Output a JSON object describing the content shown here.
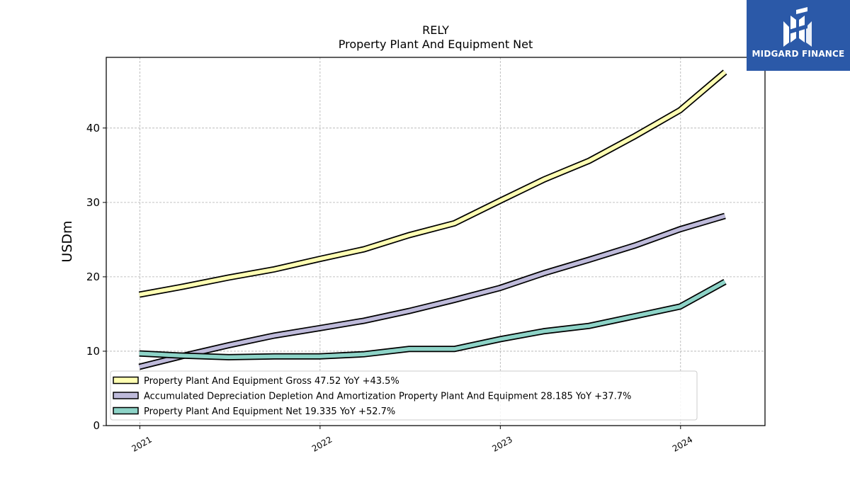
{
  "chart_data": {
    "type": "line",
    "title": "RELY",
    "subtitle": "Property Plant And Equipment Net",
    "ylabel": "USDm",
    "xlabel": "",
    "ylim": [
      0,
      49.5
    ],
    "xlim": [
      "2020-10-25",
      "2024-06-20"
    ],
    "yticks": [
      0,
      10,
      20,
      30,
      40
    ],
    "xticks": [
      "2021",
      "2022",
      "2023",
      "2024"
    ],
    "grid": true,
    "legend_position": "lower-left",
    "x": [
      "2020-12-31",
      "2021-03-31",
      "2021-06-30",
      "2021-09-30",
      "2021-12-31",
      "2022-03-31",
      "2022-06-30",
      "2022-09-30",
      "2022-12-31",
      "2023-03-31",
      "2023-06-30",
      "2023-09-30",
      "2023-12-31",
      "2024-03-31"
    ],
    "series": [
      {
        "name": "Property Plant And Equipment Gross",
        "legend_label": "Property Plant And Equipment Gross  47.52 YoY +43.5%",
        "color": "#ffffb3",
        "values": [
          17.6,
          18.7,
          19.9,
          21.0,
          22.4,
          23.7,
          25.6,
          27.2,
          30.2,
          33.1,
          35.6,
          38.9,
          42.4,
          47.52
        ]
      },
      {
        "name": "Accumulated Depreciation Depletion And Amortization Property Plant And Equipment",
        "legend_label": "Accumulated Depreciation Depletion And Amortization Property Plant And Equipment  28.185 YoY +37.7%",
        "color": "#bebada",
        "values": [
          7.9,
          9.4,
          10.8,
          12.1,
          13.1,
          14.1,
          15.4,
          16.9,
          18.5,
          20.5,
          22.3,
          24.2,
          26.4,
          28.185
        ]
      },
      {
        "name": "Property Plant And Equipment Net",
        "legend_label": "Property Plant And Equipment Net  19.335 YoY +52.7%",
        "color": "#8dd3c7",
        "values": [
          9.7,
          9.4,
          9.2,
          9.3,
          9.3,
          9.6,
          10.3,
          10.3,
          11.6,
          12.7,
          13.4,
          14.7,
          16.0,
          19.335
        ]
      }
    ]
  },
  "logo": {
    "text": "MIDGARD FINANCE",
    "background": "#2b59a8"
  }
}
